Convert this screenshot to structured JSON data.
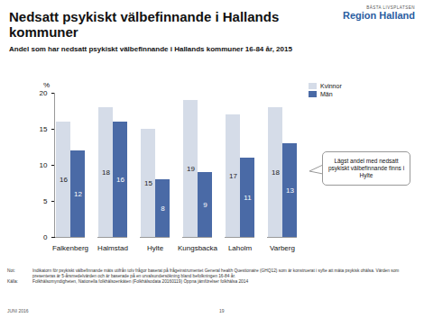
{
  "chart_data": {
    "type": "bar",
    "title": "Nedsatt psykiskt välbefinnande i Hallands kommuner",
    "subtitle": "Andel som har nedsatt psykiskt välbefinnande i Hallands kommuner 16-84 år, 2015",
    "ylabel": "%",
    "categories": [
      "Falkenberg",
      "Halmstad",
      "Hylte",
      "Kungsbacka",
      "Laholm",
      "Varberg"
    ],
    "series": [
      {
        "name": "Kvinnor",
        "color": "#d5dce8",
        "values": [
          16,
          18,
          15,
          19,
          17,
          18
        ]
      },
      {
        "name": "Män",
        "color": "#4a6aa6",
        "values": [
          12,
          16,
          8,
          9,
          11,
          13
        ]
      }
    ],
    "ylim": [
      0,
      20
    ],
    "yticks": [
      0,
      5,
      10,
      15,
      20
    ],
    "grid": false,
    "legend": "upper right",
    "data_labels": true,
    "annotation": "Lägst andel med nedsatt psykiskt välbefinnande finns i Hylte"
  },
  "logo": {
    "tagline": "BÄSTA LIVSPLATSEN",
    "name": "Region Halland"
  },
  "footer": {
    "note_label": "Not:",
    "note": "Indikatorn för psykiskt välbefinnande mäts utifrån tolv frågor baserat på frågeinstrumentet General health Questionaire (GHQ12) som är konstruerat i syfte att mäta psykisk ohälsa. Värden som presenteras är 5-årsmedelvärden och är baserade på en urvalsundersökning bland befolkningen 16-84 år.",
    "source_label": "Källa:",
    "source": "Folkhälsomyndigheten, Nationella folkhälsoenkäten (Folkhälsodata 20160119) Öppna jämförelser folkhälsa 2014",
    "date": "JUNI 2016",
    "page": "19"
  }
}
